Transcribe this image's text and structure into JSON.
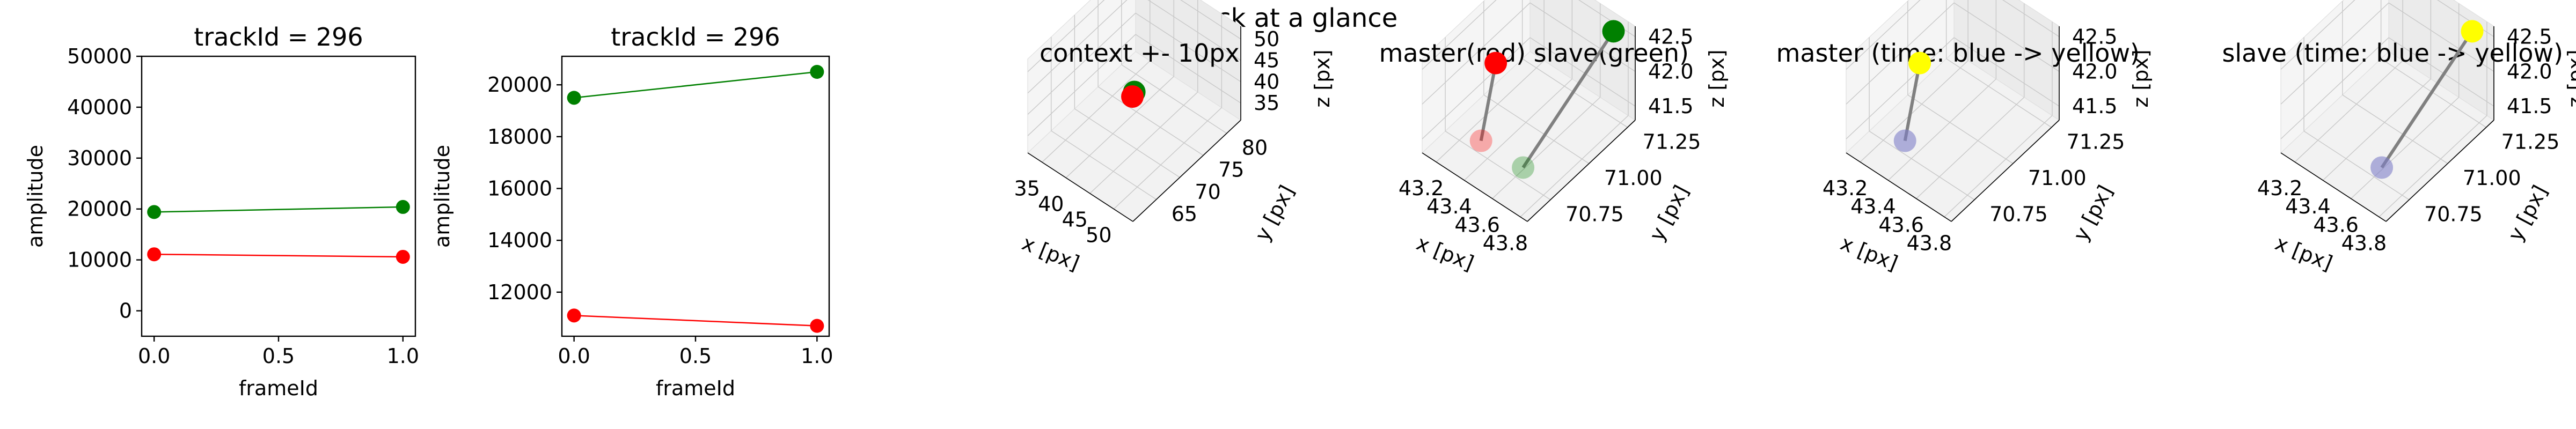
{
  "suptitle": "Track at a glance",
  "colors": {
    "master": "#ff0000",
    "slave": "#008000",
    "connector": "#808080",
    "time_start": "#7f7fc8",
    "time_end": "#ffff00"
  },
  "chart_data": [
    {
      "type": "line",
      "title": "trackId = 296",
      "xlabel": "frameId",
      "ylabel": "amplitude",
      "xlim": [
        -0.05,
        1.05
      ],
      "ylim": [
        -5000,
        50000
      ],
      "xticks": [
        "0.0",
        "0.5",
        "1.0"
      ],
      "yticks": [
        "0",
        "10000",
        "20000",
        "30000",
        "40000",
        "50000"
      ],
      "series": [
        {
          "color": "#008000",
          "x": [
            0,
            1
          ],
          "y": [
            19400,
            20400
          ]
        },
        {
          "color": "#ff0000",
          "x": [
            0,
            1
          ],
          "y": [
            11100,
            10600
          ]
        }
      ]
    },
    {
      "type": "line",
      "title": "trackId = 296",
      "xlabel": "frameId",
      "ylabel": "amplitude",
      "xlim": [
        -0.05,
        1.05
      ],
      "ylim": [
        10300,
        21100
      ],
      "xticks": [
        "0.0",
        "0.5",
        "1.0"
      ],
      "yticks": [
        "12000",
        "14000",
        "16000",
        "18000",
        "20000"
      ],
      "series": [
        {
          "color": "#008000",
          "x": [
            0,
            1
          ],
          "y": [
            19500,
            20500
          ]
        },
        {
          "color": "#ff0000",
          "x": [
            0,
            1
          ],
          "y": [
            11100,
            10700
          ]
        }
      ]
    },
    {
      "type": "scatter",
      "title": "context +- 10px",
      "xlabel": "x [px]",
      "ylabel": "y [px]",
      "zlabel": "z [px]",
      "xlim": [
        32,
        54
      ],
      "ylim": [
        60,
        83
      ],
      "zlim": [
        31,
        53
      ],
      "xticks": [
        35,
        40,
        45,
        50
      ],
      "yticks": [
        65,
        70,
        75,
        80
      ],
      "zticks": [
        35,
        40,
        45,
        50
      ],
      "points": [
        {
          "x": 43.6,
          "y": 70.9,
          "z": 42.5,
          "color": "#008000"
        },
        {
          "x": 43.3,
          "y": 70.8,
          "z": 41.3,
          "color": "#ff0000"
        }
      ]
    },
    {
      "type": "scatter",
      "title": "master(red) slave(green)",
      "xlabel": "x [px]",
      "ylabel": "y [px]",
      "zlabel": "z [px]",
      "xlim": [
        43.1,
        43.85
      ],
      "ylim": [
        70.6,
        71.3
      ],
      "zlim": [
        41.3,
        42.65
      ],
      "xticks": [
        "43.2",
        "43.4",
        "43.6",
        "43.8"
      ],
      "yticks": [
        "70.75",
        "71.00",
        "71.25"
      ],
      "zticks": [
        "41.5",
        "42.0",
        "42.5"
      ],
      "segments": [
        {
          "from": {
            "x": 43.3,
            "y": 70.8,
            "z": 41.32
          },
          "to": {
            "x": 43.35,
            "y": 70.85,
            "z": 42.4
          }
        },
        {
          "from": {
            "x": 43.6,
            "y": 70.8,
            "z": 41.33
          },
          "to": {
            "x": 43.75,
            "y": 71.25,
            "z": 42.55
          }
        }
      ],
      "points": [
        {
          "x": 43.3,
          "y": 70.8,
          "z": 41.32,
          "color": "#ff0000",
          "alpha": 0.3
        },
        {
          "x": 43.35,
          "y": 70.85,
          "z": 42.4,
          "color": "#ff0000",
          "alpha": 1
        },
        {
          "x": 43.6,
          "y": 70.8,
          "z": 41.33,
          "color": "#008000",
          "alpha": 0.3
        },
        {
          "x": 43.75,
          "y": 71.25,
          "z": 42.55,
          "color": "#008000",
          "alpha": 1
        }
      ]
    },
    {
      "type": "scatter",
      "title": "master (time: blue -> yellow)",
      "xlabel": "x [px]",
      "ylabel": "y [px]",
      "zlabel": "z [px]",
      "xlim": [
        43.1,
        43.85
      ],
      "ylim": [
        70.6,
        71.3
      ],
      "zlim": [
        41.3,
        42.65
      ],
      "xticks": [
        "43.2",
        "43.4",
        "43.6",
        "43.8"
      ],
      "yticks": [
        "70.75",
        "71.00",
        "71.25"
      ],
      "zticks": [
        "41.5",
        "42.0",
        "42.5"
      ],
      "segments": [
        {
          "from": {
            "x": 43.3,
            "y": 70.8,
            "z": 41.32
          },
          "to": {
            "x": 43.35,
            "y": 70.85,
            "z": 42.4
          }
        }
      ],
      "points": [
        {
          "x": 43.3,
          "y": 70.8,
          "z": 41.32,
          "color": "#7f7fc8",
          "alpha": 0.6
        },
        {
          "x": 43.35,
          "y": 70.85,
          "z": 42.4,
          "color": "#ffff00",
          "alpha": 1
        }
      ]
    },
    {
      "type": "scatter",
      "title": "slave (time: blue -> yellow)",
      "xlabel": "x [px]",
      "ylabel": "y [px]",
      "zlabel": "z [px]",
      "xlim": [
        43.1,
        43.85
      ],
      "ylim": [
        70.6,
        71.3
      ],
      "zlim": [
        41.3,
        42.65
      ],
      "xticks": [
        "43.2",
        "43.4",
        "43.6",
        "43.8"
      ],
      "yticks": [
        "70.75",
        "71.00",
        "71.25"
      ],
      "zticks": [
        "41.5",
        "42.0",
        "42.5"
      ],
      "segments": [
        {
          "from": {
            "x": 43.6,
            "y": 70.8,
            "z": 41.33
          },
          "to": {
            "x": 43.75,
            "y": 71.25,
            "z": 42.55
          }
        }
      ],
      "points": [
        {
          "x": 43.6,
          "y": 70.8,
          "z": 41.33,
          "color": "#7f7fc8",
          "alpha": 0.6
        },
        {
          "x": 43.75,
          "y": 71.25,
          "z": 42.55,
          "color": "#ffff00",
          "alpha": 1
        }
      ]
    }
  ]
}
